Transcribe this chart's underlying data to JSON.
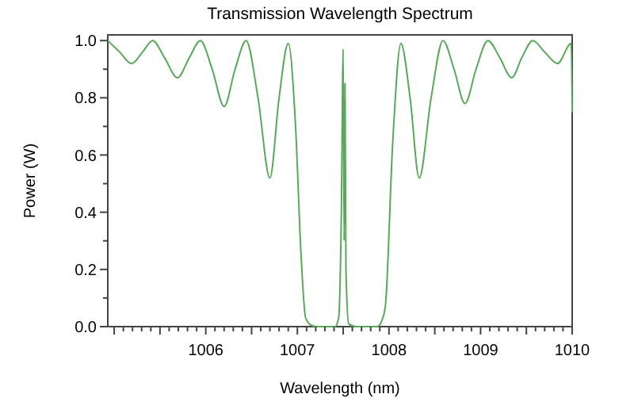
{
  "chart_data": {
    "type": "line",
    "title": "Transmission Wavelength Spectrum",
    "xlabel": "Wavelength (nm)",
    "ylabel": "Power (W)",
    "xlim": [
      1004.93,
      1010
    ],
    "ylim": [
      0,
      1.02
    ],
    "xticks": [
      {
        "value": 1005,
        "label": null
      },
      {
        "value": 1005.1,
        "label": null
      },
      {
        "value": 1005.2,
        "label": null
      },
      {
        "value": 1005.3,
        "label": null
      },
      {
        "value": 1005.4,
        "label": null
      },
      {
        "value": 1005.5,
        "label": null
      },
      {
        "value": 1005.6,
        "label": null
      },
      {
        "value": 1005.7,
        "label": null
      },
      {
        "value": 1005.8,
        "label": null
      },
      {
        "value": 1005.9,
        "label": null
      },
      1006,
      {
        "value": 1006.1,
        "label": null
      },
      {
        "value": 1006.2,
        "label": null
      },
      {
        "value": 1006.3,
        "label": null
      },
      {
        "value": 1006.4,
        "label": null
      },
      {
        "value": 1006.5,
        "label": null
      },
      {
        "value": 1006.6,
        "label": null
      },
      {
        "value": 1006.7,
        "label": null
      },
      {
        "value": 1006.8,
        "label": null
      },
      {
        "value": 1006.9,
        "label": null
      },
      1007,
      {
        "value": 1007.1,
        "label": null
      },
      {
        "value": 1007.2,
        "label": null
      },
      {
        "value": 1007.3,
        "label": null
      },
      {
        "value": 1007.4,
        "label": null
      },
      {
        "value": 1007.5,
        "label": null
      },
      {
        "value": 1007.6,
        "label": null
      },
      {
        "value": 1007.7,
        "label": null
      },
      {
        "value": 1007.8,
        "label": null
      },
      {
        "value": 1007.9,
        "label": null
      },
      1008,
      {
        "value": 1008.1,
        "label": null
      },
      {
        "value": 1008.2,
        "label": null
      },
      {
        "value": 1008.3,
        "label": null
      },
      {
        "value": 1008.4,
        "label": null
      },
      {
        "value": 1008.5,
        "label": null
      },
      {
        "value": 1008.6,
        "label": null
      },
      {
        "value": 1008.7,
        "label": null
      },
      {
        "value": 1008.8,
        "label": null
      },
      {
        "value": 1008.9,
        "label": null
      },
      1009,
      {
        "value": 1009.1,
        "label": null
      },
      {
        "value": 1009.2,
        "label": null
      },
      {
        "value": 1009.3,
        "label": null
      },
      {
        "value": 1009.4,
        "label": null
      },
      {
        "value": 1009.5,
        "label": null
      },
      {
        "value": 1009.6,
        "label": null
      },
      {
        "value": 1009.7,
        "label": null
      },
      {
        "value": 1009.8,
        "label": null
      },
      {
        "value": 1009.9,
        "label": null
      },
      1010
    ],
    "yticks": [
      {
        "value": 0,
        "label": "0.0"
      },
      {
        "value": 0.1,
        "label": null
      },
      0.2,
      {
        "value": 0.3,
        "label": null
      },
      0.4,
      {
        "value": 0.5,
        "label": null
      },
      0.6,
      {
        "value": 0.7,
        "label": null
      },
      0.8,
      {
        "value": 0.9,
        "label": null
      },
      {
        "value": 1,
        "label": "1.0"
      }
    ],
    "grid": false,
    "marker": "none",
    "line_style": "solid",
    "series": [
      {
        "color": "#5aa85a",
        "x": [
          1004.93,
          1005.06,
          1005.19,
          1005.31,
          1005.42,
          1005.55,
          1005.69,
          1005.82,
          1005.94,
          1006.07,
          1006.2,
          1006.32,
          1006.44,
          1006.57,
          1006.7,
          1006.8,
          1006.9,
          1006.98,
          1007.04,
          1007.09,
          1007.15,
          1007.21,
          1007.41,
          1007.45,
          1007.48,
          1007.5,
          1007.51,
          1007.52,
          1007.53,
          1007.56,
          1007.64,
          1007.87,
          1007.92,
          1007.96,
          1008.04,
          1008.13,
          1008.23,
          1008.33,
          1008.46,
          1008.59,
          1008.71,
          1008.83,
          1008.95,
          1009.08,
          1009.21,
          1009.34,
          1009.45,
          1009.57,
          1009.7,
          1009.84,
          1009.99,
          1010
        ],
        "values": [
          1.0,
          0.96,
          0.92,
          0.96,
          1.0,
          0.94,
          0.87,
          0.94,
          1.0,
          0.9,
          0.77,
          0.9,
          1.0,
          0.8,
          0.52,
          0.8,
          0.99,
          0.7,
          0.25,
          0.03,
          0.005,
          0.0,
          0.0,
          0.03,
          0.4,
          0.97,
          0.3,
          0.85,
          0.2,
          0.01,
          0.0,
          0.0,
          0.02,
          0.07,
          0.64,
          0.99,
          0.8,
          0.52,
          0.8,
          1.0,
          0.9,
          0.78,
          0.9,
          1.0,
          0.94,
          0.87,
          0.94,
          1.0,
          0.96,
          0.92,
          0.99,
          0.75
        ]
      }
    ]
  }
}
